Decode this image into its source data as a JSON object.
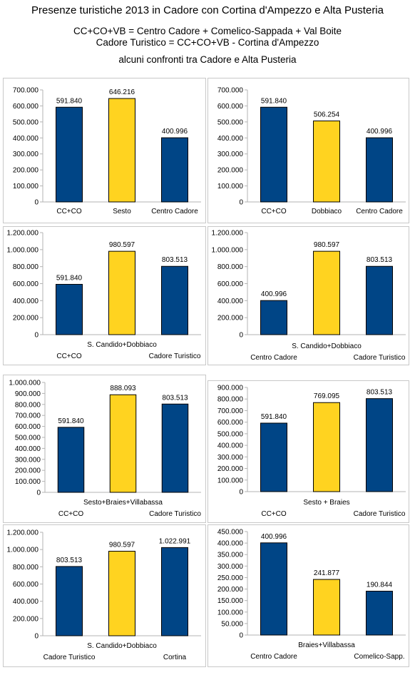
{
  "header": {
    "title": "Presenze turistiche 2013 in Cadore con Cortina d'Ampezzo e Alta Pusteria",
    "subtitle_1": "CC+CO+VB = Centro Cadore + Comelico-Sappada + Val Boite",
    "subtitle_2": "Cadore Turistico = CC+CO+VB - Cortina d'Ampezzo",
    "subtitle_3": "alcuni confronti tra Cadore e Alta Pusteria"
  },
  "colors": {
    "blue": "#004586",
    "yellow": "#ffd320",
    "grid": "#b3b3b3",
    "axis": "#b3b3b3"
  },
  "chart_data": [
    {
      "type": "bar",
      "title": "",
      "xlabel": "",
      "ylabel": "",
      "categories": [
        "CC+CO",
        "Sesto",
        "Centro Cadore"
      ],
      "values": [
        591840,
        646216,
        400996
      ],
      "value_labels": [
        "591.840",
        "646.216",
        "400.996"
      ],
      "bar_colors": [
        "blue",
        "yellow",
        "blue"
      ],
      "ylim": [
        0,
        700000
      ],
      "y_ticks": [
        "0",
        "100.000",
        "200.000",
        "300.000",
        "400.000",
        "500.000",
        "600.000",
        "700.000"
      ],
      "grid": false
    },
    {
      "type": "bar",
      "title": "",
      "xlabel": "",
      "ylabel": "",
      "categories": [
        "CC+CO",
        "Dobbiaco",
        "Centro Cadore"
      ],
      "values": [
        591840,
        506254,
        400996
      ],
      "value_labels": [
        "591.840",
        "506.254",
        "400.996"
      ],
      "bar_colors": [
        "blue",
        "yellow",
        "blue"
      ],
      "ylim": [
        0,
        700000
      ],
      "y_ticks": [
        "0",
        "100.000",
        "200.000",
        "300.000",
        "400.000",
        "500.000",
        "600.000",
        "700.000"
      ],
      "grid": false
    },
    {
      "type": "bar",
      "title": "",
      "xlabel": "",
      "ylabel": "",
      "categories": [
        "CC+CO",
        "S. Candido+Dobbiaco",
        "Cadore Turistico"
      ],
      "values": [
        591840,
        980597,
        803513
      ],
      "value_labels": [
        "591.840",
        "980.597",
        "803.513"
      ],
      "bar_colors": [
        "blue",
        "yellow",
        "blue"
      ],
      "ylim": [
        0,
        1200000
      ],
      "y_ticks": [
        "0",
        "200.000",
        "400.000",
        "600.000",
        "800.000",
        "1.000.000",
        "1.200.000"
      ],
      "grid": false
    },
    {
      "type": "bar",
      "title": "",
      "xlabel": "",
      "ylabel": "",
      "categories": [
        "Centro Cadore",
        "S. Candido+Dobbiaco",
        "Cadore Turistico"
      ],
      "values": [
        400996,
        980597,
        803513
      ],
      "value_labels": [
        "400.996",
        "980.597",
        "803.513"
      ],
      "bar_colors": [
        "blue",
        "yellow",
        "blue"
      ],
      "ylim": [
        0,
        1200000
      ],
      "y_ticks": [
        "0",
        "200.000",
        "400.000",
        "600.000",
        "800.000",
        "1.000.000",
        "1.200.000"
      ],
      "grid": false
    },
    {
      "type": "bar",
      "title": "",
      "xlabel": "",
      "ylabel": "",
      "categories": [
        "CC+CO",
        "Sesto+Braies+Villabassa",
        "Cadore Turistico"
      ],
      "values": [
        591840,
        888093,
        803513
      ],
      "value_labels": [
        "591.840",
        "888.093",
        "803.513"
      ],
      "bar_colors": [
        "blue",
        "yellow",
        "blue"
      ],
      "ylim": [
        0,
        1000000
      ],
      "y_ticks": [
        "0",
        "100.000",
        "200.000",
        "300.000",
        "400.000",
        "500.000",
        "600.000",
        "700.000",
        "800.000",
        "900.000",
        "1.000.000"
      ],
      "grid": false
    },
    {
      "type": "bar",
      "title": "",
      "xlabel": "",
      "ylabel": "",
      "categories": [
        "CC+CO",
        "Sesto + Braies",
        "Cadore Turistico"
      ],
      "values": [
        591840,
        769095,
        803513
      ],
      "value_labels": [
        "591.840",
        "769.095",
        "803.513"
      ],
      "bar_colors": [
        "blue",
        "yellow",
        "blue"
      ],
      "ylim": [
        0,
        900000
      ],
      "y_ticks": [
        "0",
        "100.000",
        "200.000",
        "300.000",
        "400.000",
        "500.000",
        "600.000",
        "700.000",
        "800.000",
        "900.000"
      ],
      "grid": false
    },
    {
      "type": "bar",
      "title": "",
      "xlabel": "",
      "ylabel": "",
      "categories": [
        "Cadore Turistico",
        "S. Candido+Dobbiaco",
        "Cortina"
      ],
      "values": [
        803513,
        980597,
        1022991
      ],
      "value_labels": [
        "803.513",
        "980.597",
        "1.022.991"
      ],
      "bar_colors": [
        "blue",
        "yellow",
        "blue"
      ],
      "ylim": [
        0,
        1200000
      ],
      "y_ticks": [
        "0",
        "200.000",
        "400.000",
        "600.000",
        "800.000",
        "1.000.000",
        "1.200.000"
      ],
      "grid": false
    },
    {
      "type": "bar",
      "title": "",
      "xlabel": "",
      "ylabel": "",
      "categories": [
        "Centro Cadore",
        "Braies+Villabassa",
        "Comelico-Sapp."
      ],
      "values": [
        400996,
        241877,
        190844
      ],
      "value_labels": [
        "400.996",
        "241.877",
        "190.844"
      ],
      "bar_colors": [
        "blue",
        "yellow",
        "blue"
      ],
      "ylim": [
        0,
        450000
      ],
      "y_ticks": [
        "0",
        "50.000",
        "100.000",
        "150.000",
        "200.000",
        "250.000",
        "300.000",
        "350.000",
        "400.000",
        "450.000"
      ],
      "grid": false
    }
  ]
}
